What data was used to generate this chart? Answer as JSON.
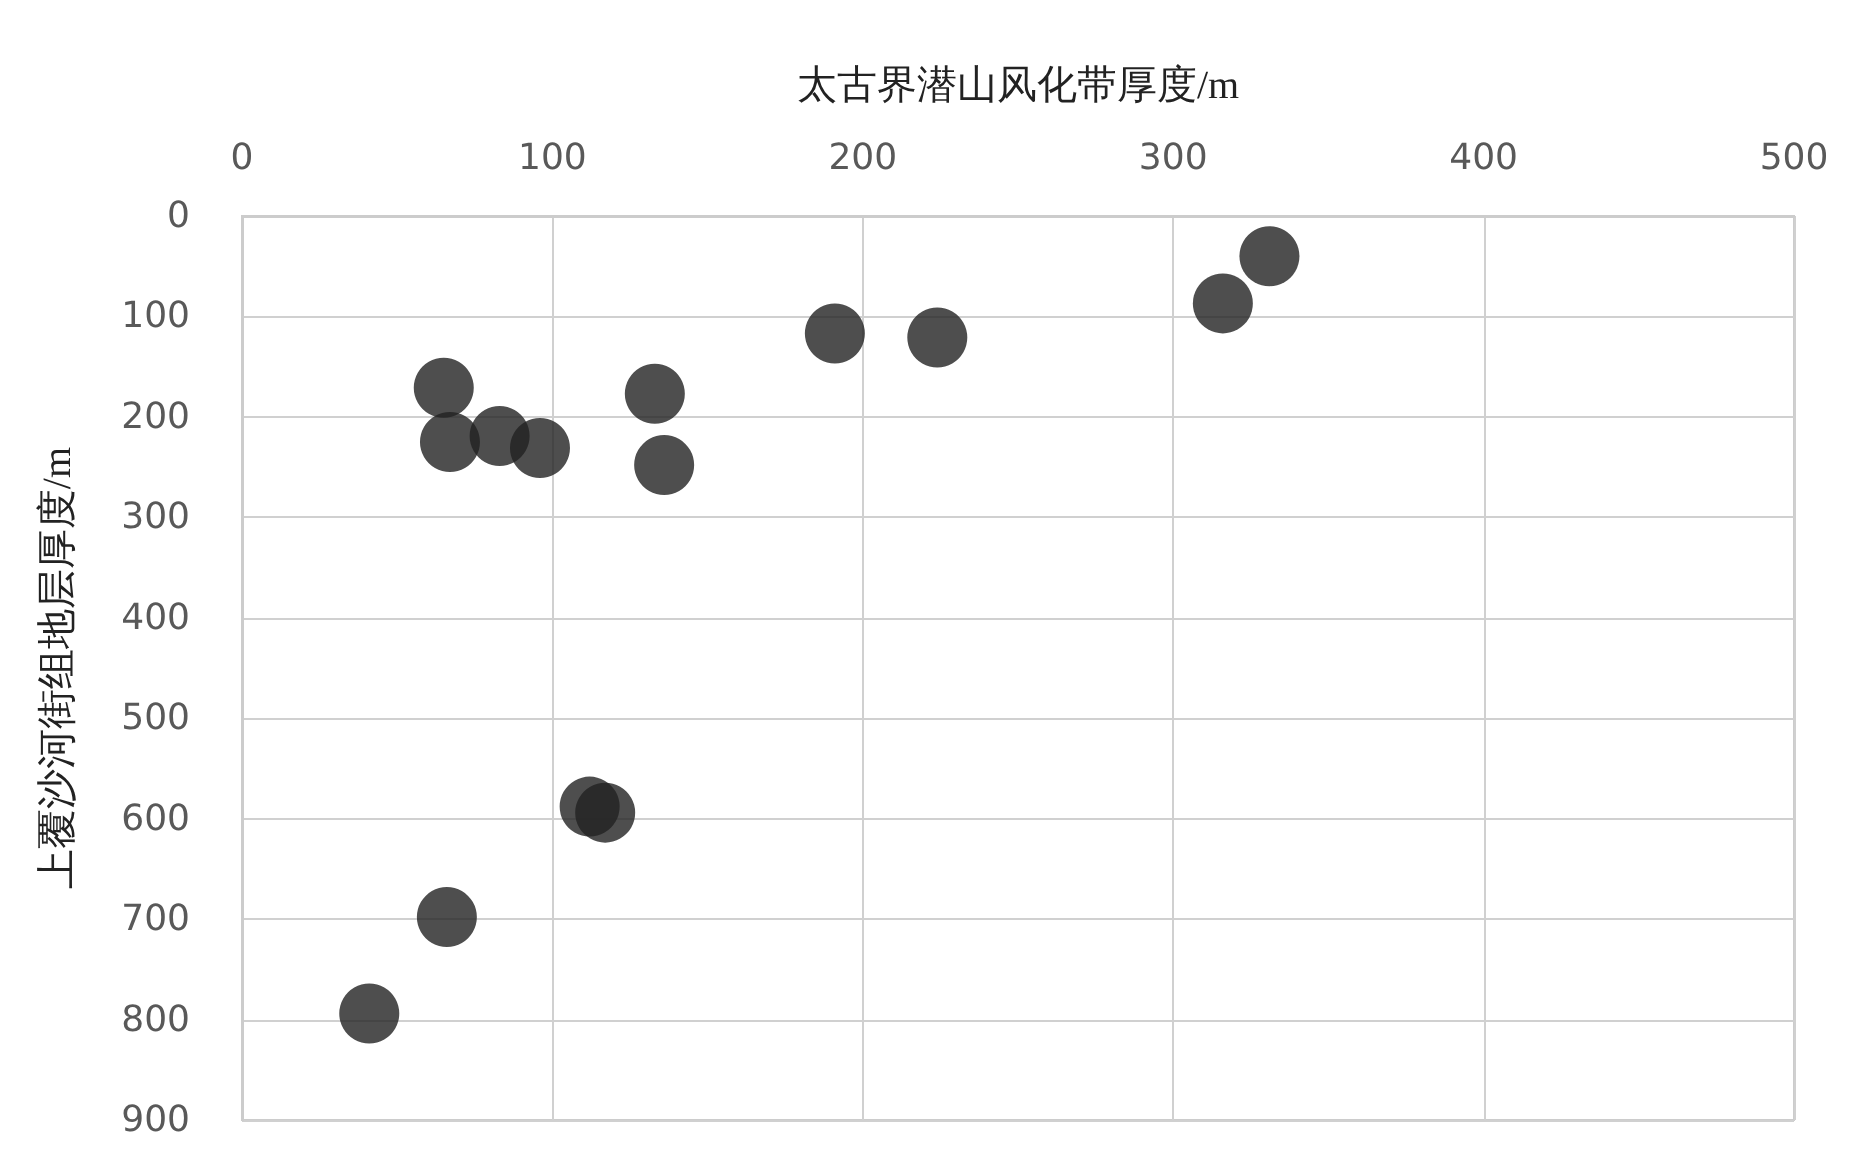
{
  "chart_data": {
    "type": "scatter",
    "xlabel": "太古界潜山风化带厚度/m",
    "ylabel": "上覆沙河街组地层厚度/m",
    "x": [
      331,
      316,
      191,
      224,
      65,
      133,
      67,
      83,
      96,
      136,
      117,
      112,
      66,
      41
    ],
    "values": [
      40,
      87,
      117,
      121,
      171,
      177,
      225,
      219,
      231,
      248,
      594,
      588,
      698,
      794
    ],
    "color": "#222222",
    "marker": "circle",
    "grid": true,
    "xlim": [
      0,
      500
    ],
    "xticks": [
      0,
      100,
      200,
      300,
      400,
      500
    ],
    "ylim": [
      900,
      0
    ],
    "yticks": [
      0,
      100,
      200,
      300,
      400,
      500,
      600,
      700,
      800,
      900
    ]
  }
}
